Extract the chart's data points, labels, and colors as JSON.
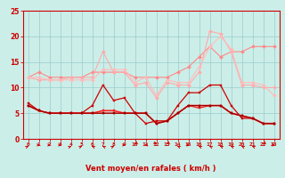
{
  "x": [
    0,
    1,
    2,
    3,
    4,
    5,
    6,
    7,
    8,
    9,
    10,
    11,
    12,
    13,
    14,
    15,
    16,
    17,
    18,
    19,
    20,
    21,
    22,
    23
  ],
  "series": [
    {
      "color": "#ff8888",
      "lw": 0.8,
      "marker": "D",
      "ms": 2.0,
      "values": [
        12,
        13,
        12,
        12,
        12,
        12,
        13,
        13,
        13,
        13,
        12,
        12,
        12,
        12,
        13,
        14,
        16,
        18,
        16,
        17,
        17,
        18,
        18,
        18
      ]
    },
    {
      "color": "#ffaaaa",
      "lw": 0.8,
      "marker": "D",
      "ms": 2.0,
      "values": [
        12,
        11.5,
        11.5,
        11.5,
        12,
        12,
        12,
        17,
        13,
        13,
        10.5,
        11,
        8,
        11,
        10.5,
        10.5,
        13,
        21,
        20.5,
        17,
        10.5,
        10.5,
        10,
        10
      ]
    },
    {
      "color": "#ffbbbb",
      "lw": 0.8,
      "marker": "D",
      "ms": 2.0,
      "values": [
        12,
        12,
        11.5,
        11.5,
        11.5,
        11.5,
        11.5,
        13.5,
        13.5,
        13.5,
        11,
        12,
        8.5,
        11.5,
        11,
        11,
        14,
        18,
        20,
        17.5,
        11,
        11,
        10.5,
        8.5
      ]
    },
    {
      "color": "#cc0000",
      "lw": 0.9,
      "marker": "s",
      "ms": 2.0,
      "values": [
        7,
        5.5,
        5,
        5,
        5,
        5,
        6.5,
        10.5,
        7.5,
        8,
        5,
        3,
        3.5,
        3.5,
        6.5,
        9,
        9,
        10.5,
        10.5,
        6.5,
        4,
        4,
        3,
        3
      ]
    },
    {
      "color": "#ff2222",
      "lw": 1.2,
      "marker": "s",
      "ms": 2.0,
      "values": [
        6.5,
        5.5,
        5,
        5,
        5,
        5,
        5,
        5.5,
        5.5,
        5,
        5,
        5,
        3,
        3.5,
        5,
        6.5,
        6.5,
        6.5,
        6.5,
        5,
        4.5,
        4,
        3,
        3
      ]
    },
    {
      "color": "#ee1111",
      "lw": 0.8,
      "marker": "s",
      "ms": 1.8,
      "values": [
        6.5,
        5.5,
        5,
        5,
        5,
        5,
        5,
        5,
        5,
        5,
        5,
        5,
        3,
        3.5,
        5,
        6.5,
        6,
        6.5,
        6.5,
        5,
        4.5,
        4,
        3,
        3
      ]
    },
    {
      "color": "#990000",
      "lw": 0.8,
      "marker": "s",
      "ms": 1.8,
      "values": [
        6.5,
        5.5,
        5,
        5,
        5,
        5,
        5,
        5,
        5,
        5,
        5,
        5,
        3,
        3.5,
        5,
        6.5,
        6.5,
        6.5,
        6.5,
        5,
        4.5,
        4,
        3,
        3
      ]
    }
  ],
  "arrows": {
    "angles": [
      45,
      90,
      90,
      90,
      45,
      45,
      315,
      315,
      45,
      90,
      225,
      270,
      135,
      225,
      315,
      90,
      315,
      315,
      315,
      315,
      315,
      315,
      225,
      90
    ]
  },
  "xlabel": "Vent moyen/en rafales ( km/h )",
  "xlim_min": -0.5,
  "xlim_max": 23.5,
  "ylim": [
    0,
    25
  ],
  "yticks": [
    0,
    5,
    10,
    15,
    20,
    25
  ],
  "xticks": [
    0,
    1,
    2,
    3,
    4,
    5,
    6,
    7,
    8,
    9,
    10,
    11,
    12,
    13,
    14,
    15,
    16,
    17,
    18,
    19,
    20,
    21,
    22,
    23
  ],
  "bg_color": "#cceee8",
  "grid_color": "#99cccc",
  "axis_color": "#cc0000",
  "tick_color": "#cc0000",
  "xlabel_color": "#cc0000",
  "arrow_color": "#cc0000"
}
